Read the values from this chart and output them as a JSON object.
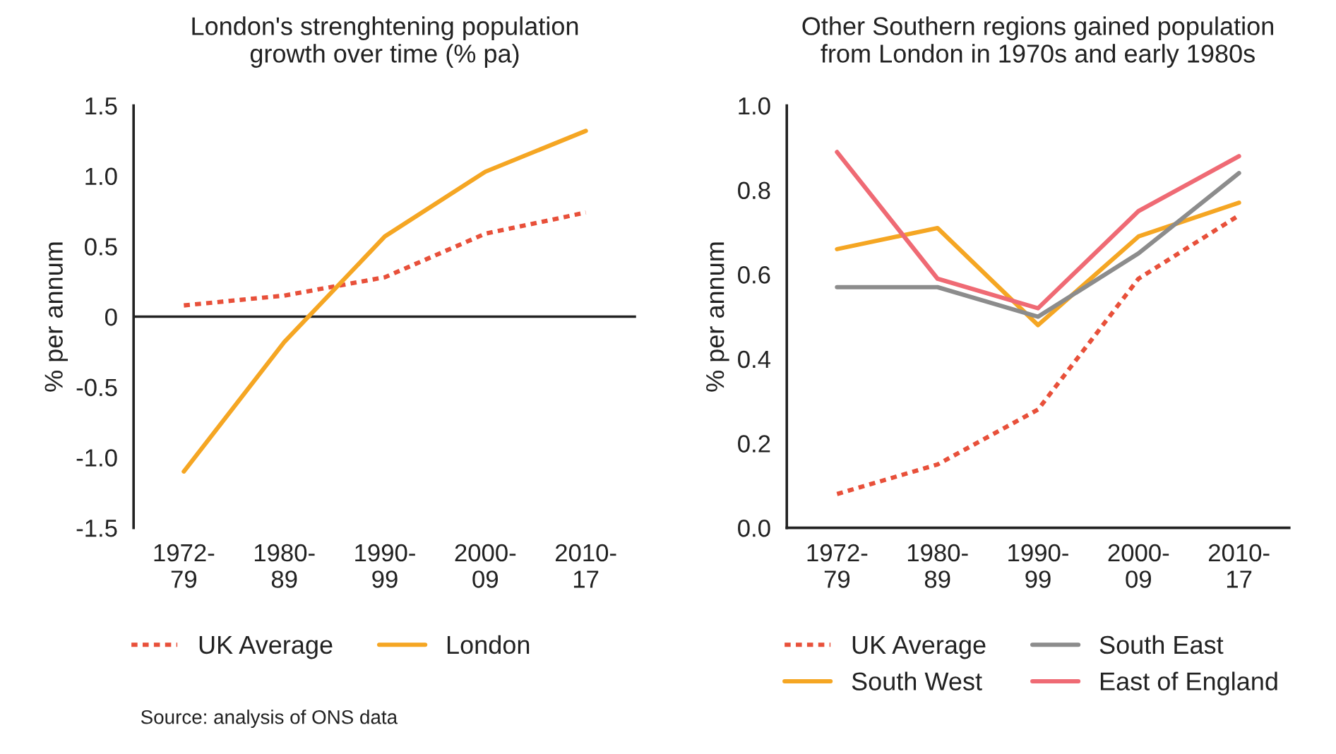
{
  "chart_data": [
    {
      "type": "line",
      "title": "London's strenghtening population growth over time (% pa)",
      "ylabel": "% per annum",
      "categories": [
        "1972-\n79",
        "1980-\n89",
        "1990-\n99",
        "2000-\n09",
        "2010-\n17"
      ],
      "series": [
        {
          "name": "UK Average",
          "color": "#e8503a",
          "line_style": "dotted",
          "values": [
            0.08,
            0.15,
            0.28,
            0.59,
            0.74
          ]
        },
        {
          "name": "London",
          "color": "#f5a623",
          "line_style": "solid",
          "values": [
            -1.1,
            -0.18,
            0.57,
            1.03,
            1.32
          ]
        }
      ],
      "ylim": [
        -1.5,
        1.5
      ],
      "yticks": [
        {
          "value": -1.5,
          "label": "-1.5"
        },
        {
          "value": -1.0,
          "label": "-1.0"
        },
        {
          "value": -0.5,
          "label": "-0.5"
        },
        0,
        0.5,
        {
          "value": 1.0,
          "label": "1.0"
        },
        1.5
      ],
      "ref_lines": [
        {
          "axis": "y",
          "value": 0,
          "color": "#222222"
        }
      ],
      "grid": false,
      "legend": "bottom",
      "annotations": [
        "Source: analysis of ONS data"
      ]
    },
    {
      "type": "line",
      "title": "Other Southern regions gained population from London in 1970s and early 1980s",
      "ylabel": "% per annum",
      "categories": [
        "1972-\n79",
        "1980-\n89",
        "1990-\n99",
        "2000-\n09",
        "2010-\n17"
      ],
      "series": [
        {
          "name": "UK Average",
          "color": "#e8503a",
          "line_style": "dotted",
          "values": [
            0.08,
            0.15,
            0.28,
            0.59,
            0.74
          ]
        },
        {
          "name": "South West",
          "color": "#f5a623",
          "line_style": "solid",
          "values": [
            0.66,
            0.71,
            0.48,
            0.69,
            0.77
          ]
        },
        {
          "name": "South East",
          "color": "#8c8c8c",
          "line_style": "solid",
          "values": [
            0.57,
            0.57,
            0.5,
            0.65,
            0.84
          ]
        },
        {
          "name": "East of England",
          "color": "#ef6a74",
          "line_style": "solid",
          "values": [
            0.89,
            0.59,
            0.52,
            0.75,
            0.88
          ]
        }
      ],
      "ylim": [
        0,
        1.0
      ],
      "yticks": [
        {
          "value": 0,
          "label": "0.0"
        },
        0.2,
        0.4,
        0.6,
        0.8,
        {
          "value": 1.0,
          "label": "1.0"
        }
      ],
      "grid": false,
      "legend": "bottom"
    }
  ]
}
